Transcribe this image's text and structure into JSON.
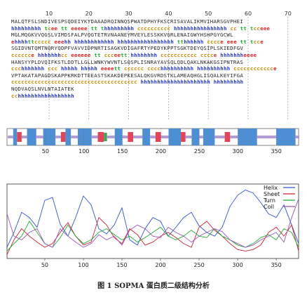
{
  "caption": "图 1  SOPMA 蛋白质二级结构分析",
  "sequence_panel": {
    "ruler_labels": [
      "10",
      "20",
      "30",
      "40",
      "50",
      "60",
      "70"
    ],
    "lines": [
      {
        "aa": "MALQTFSLSNDIVESPSQDEIYKYDAAADRQINNQSPWATDPHYFKSCRISAVALIKMVIHARSGVPHEI",
        "ss": "hhhhhhhhh tcee tt eeeee tt thhhhhhhhh cccccccccc hhhhhhhhhhhhhhhh cc tt tcceee"
      },
      {
        "aa": "MGLMQGKVVQGSLVIMDSFALPVQGTETRVNAANEYMVEYLESSKKVGRLENAIGWYHSHPGYGCWL",
        "ss": "ehhhhttccccc eeehh hhhhhhhhhhhh hhhhhhhhhhhhhhhhh tthhhhhh cccce eee tt tcce"
      },
      {
        "aa": "SGIDVNTQMTNQRYQDPFVAVVIDPNRTISAGKVDIGAFRTYPEDYKPPTSGKTDEYQSIPLSKIEDFGV",
        "ss": "cccccce hhhhhhhcc eeeeee tt ccceett hhhhhhhh ccccccccccc cccce hhhhhhheeee"
      },
      {
        "aa": "HANSYYPLDVQIFKSTLDDTLLGLLWNKYWVNTLSQSPLISNRAYAVSQLQDLQAKLNKAKGSIPNTRAS",
        "ss": "ccchhhhhhh ccc hhhhh hhhhh eeeett cccccc cccchhhhhhhhhh hhhhhhhhhh cccccccccccce"
      },
      {
        "aa": "VPTAKATAPAGDSKAPPKRKDTTEEASTSKAKDEPKESALQKGVRDSTKLAMEAQHGLISQALKEYIFGA",
        "ss": "cccccccccccccccccccccccccccccccccccccc hhhhhhhhhhhhhhhhhhhhh hhhhhhhhh"
      },
      {
        "aa": "NQDVAQSLNVLNTAIATEK",
        "ss": "cchhhhhhhhhhhhhhhhh"
      }
    ]
  },
  "secondary_bar": {
    "tick_labels": [
      "50",
      "100",
      "150",
      "200",
      "250",
      "300",
      "350"
    ],
    "colors": {
      "helix": "#4e8fd4",
      "strand": "#e0455a",
      "turn": "#3fa652",
      "coil": "#b59ad8"
    },
    "segments": [
      [
        "coil",
        1,
        8
      ],
      [
        "helix",
        8,
        13
      ],
      [
        "strand",
        13,
        19
      ],
      [
        "coil",
        19,
        26
      ],
      [
        "helix",
        26,
        38
      ],
      [
        "coil",
        38,
        47
      ],
      [
        "helix",
        47,
        63
      ],
      [
        "coil",
        63,
        70
      ],
      [
        "strand",
        70,
        76
      ],
      [
        "helix",
        76,
        83
      ],
      [
        "coil",
        83,
        92
      ],
      [
        "helix",
        92,
        110
      ],
      [
        "coil",
        110,
        118
      ],
      [
        "strand",
        118,
        126
      ],
      [
        "turn",
        126,
        130
      ],
      [
        "coil",
        130,
        140
      ],
      [
        "helix",
        140,
        150
      ],
      [
        "coil",
        150,
        157
      ],
      [
        "strand",
        157,
        164
      ],
      [
        "coil",
        164,
        176
      ],
      [
        "helix",
        176,
        186
      ],
      [
        "coil",
        186,
        193
      ],
      [
        "strand",
        193,
        200
      ],
      [
        "coil",
        200,
        210
      ],
      [
        "helix",
        210,
        226
      ],
      [
        "strand",
        226,
        232
      ],
      [
        "coil",
        232,
        240
      ],
      [
        "helix",
        240,
        250
      ],
      [
        "coil",
        250,
        255
      ],
      [
        "helix",
        255,
        270
      ],
      [
        "coil",
        270,
        283
      ],
      [
        "strand",
        283,
        290
      ],
      [
        "coil",
        290,
        300
      ],
      [
        "helix",
        300,
        325
      ],
      [
        "coil",
        325,
        350
      ],
      [
        "helix",
        350,
        375
      ],
      [
        "coil",
        375,
        380
      ]
    ]
  },
  "chart_data": {
    "type": "line",
    "title": "",
    "xlabel": "",
    "ylabel": "",
    "xlim": [
      1,
      379
    ],
    "ylim": [
      0,
      1
    ],
    "x_ticks": [
      50,
      100,
      150,
      200,
      250,
      300,
      350
    ],
    "grid": false,
    "legend_position": "top-right",
    "series": [
      {
        "name": "Helix",
        "color": "#3355cc",
        "x": [
          1,
          10,
          20,
          30,
          40,
          50,
          60,
          70,
          80,
          90,
          100,
          110,
          120,
          130,
          140,
          150,
          160,
          170,
          180,
          190,
          200,
          210,
          220,
          230,
          240,
          250,
          260,
          270,
          280,
          290,
          300,
          310,
          320,
          330,
          340,
          350,
          360,
          370,
          379
        ],
        "values": [
          0.15,
          0.35,
          0.62,
          0.55,
          0.42,
          0.78,
          0.82,
          0.46,
          0.3,
          0.55,
          0.84,
          0.72,
          0.4,
          0.33,
          0.45,
          0.68,
          0.25,
          0.18,
          0.4,
          0.55,
          0.5,
          0.3,
          0.42,
          0.55,
          0.62,
          0.44,
          0.35,
          0.3,
          0.42,
          0.7,
          0.85,
          0.92,
          0.88,
          0.75,
          0.6,
          0.55,
          0.72,
          0.45,
          0.2
        ]
      },
      {
        "name": "Sheet",
        "color": "#cc2233",
        "x": [
          1,
          10,
          20,
          30,
          40,
          50,
          60,
          70,
          80,
          90,
          100,
          110,
          120,
          130,
          140,
          150,
          160,
          170,
          180,
          190,
          200,
          210,
          220,
          230,
          240,
          250,
          260,
          270,
          280,
          290,
          300,
          310,
          320,
          330,
          340,
          350,
          360,
          370,
          379
        ],
        "values": [
          0.05,
          0.25,
          0.4,
          0.3,
          0.22,
          0.15,
          0.2,
          0.35,
          0.48,
          0.3,
          0.18,
          0.22,
          0.55,
          0.45,
          0.28,
          0.2,
          0.4,
          0.32,
          0.18,
          0.22,
          0.3,
          0.35,
          0.28,
          0.2,
          0.15,
          0.42,
          0.5,
          0.38,
          0.3,
          0.2,
          0.12,
          0.1,
          0.12,
          0.18,
          0.35,
          0.42,
          0.3,
          0.45,
          0.1
        ]
      },
      {
        "name": "Turn",
        "color": "#22aa33",
        "x": [
          1,
          10,
          20,
          30,
          40,
          50,
          60,
          70,
          80,
          90,
          100,
          110,
          120,
          130,
          140,
          150,
          160,
          170,
          180,
          190,
          200,
          210,
          220,
          230,
          240,
          250,
          260,
          270,
          280,
          290,
          300,
          310,
          320,
          330,
          340,
          350,
          360,
          370,
          379
        ],
        "values": [
          0.1,
          0.2,
          0.3,
          0.5,
          0.35,
          0.2,
          0.15,
          0.28,
          0.45,
          0.3,
          0.2,
          0.25,
          0.35,
          0.4,
          0.32,
          0.25,
          0.3,
          0.22,
          0.28,
          0.35,
          0.42,
          0.3,
          0.25,
          0.3,
          0.38,
          0.3,
          0.28,
          0.4,
          0.3,
          0.25,
          0.18,
          0.15,
          0.2,
          0.28,
          0.32,
          0.25,
          0.4,
          0.35,
          0.15
        ]
      },
      {
        "name": "Coil",
        "color": "#9955bb",
        "x": [
          1,
          10,
          20,
          30,
          40,
          50,
          60,
          70,
          80,
          90,
          100,
          110,
          120,
          130,
          140,
          150,
          160,
          170,
          180,
          190,
          200,
          210,
          220,
          230,
          240,
          250,
          260,
          270,
          280,
          290,
          300,
          310,
          320,
          330,
          340,
          350,
          360,
          370,
          379
        ],
        "values": [
          0.6,
          0.3,
          0.25,
          0.35,
          0.4,
          0.2,
          0.15,
          0.4,
          0.3,
          0.22,
          0.15,
          0.2,
          0.32,
          0.25,
          0.3,
          0.18,
          0.38,
          0.45,
          0.4,
          0.3,
          0.28,
          0.42,
          0.35,
          0.3,
          0.22,
          0.3,
          0.35,
          0.4,
          0.36,
          0.25,
          0.2,
          0.15,
          0.18,
          0.25,
          0.3,
          0.35,
          0.22,
          0.55,
          0.8
        ]
      }
    ]
  }
}
